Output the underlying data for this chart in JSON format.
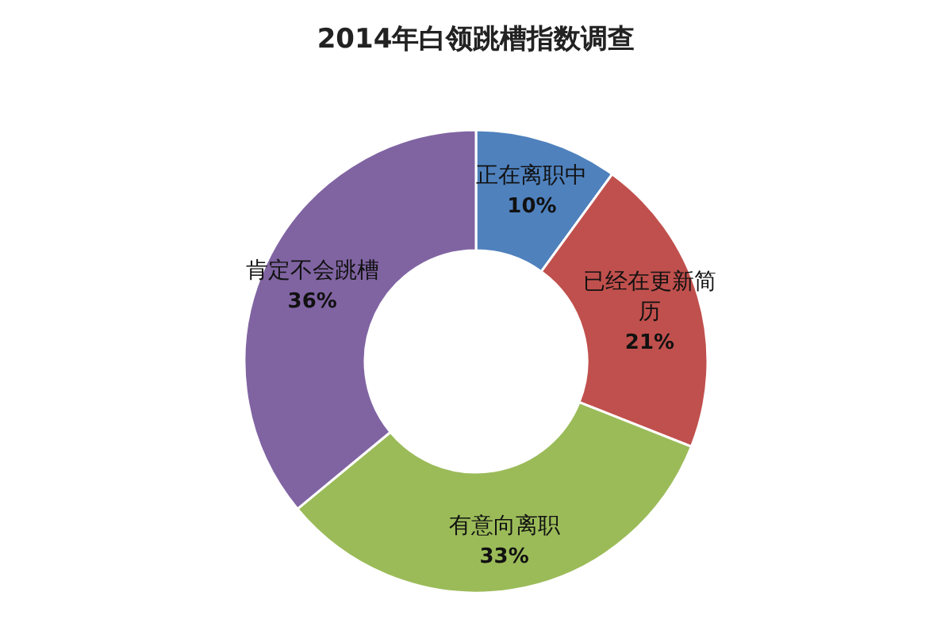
{
  "chart_data": {
    "type": "donut",
    "title": "2014年白领跳槽指数调查",
    "categories": [
      "正在离职中",
      "已经在更新简历",
      "有意向离职",
      "肯定不会跳槽"
    ],
    "values": [
      10,
      21,
      33,
      36
    ],
    "value_labels": [
      "10%",
      "21%",
      "33%",
      "36%"
    ],
    "colors": [
      "#4f81bd",
      "#c0504d",
      "#9bbb59",
      "#8064a2"
    ]
  }
}
